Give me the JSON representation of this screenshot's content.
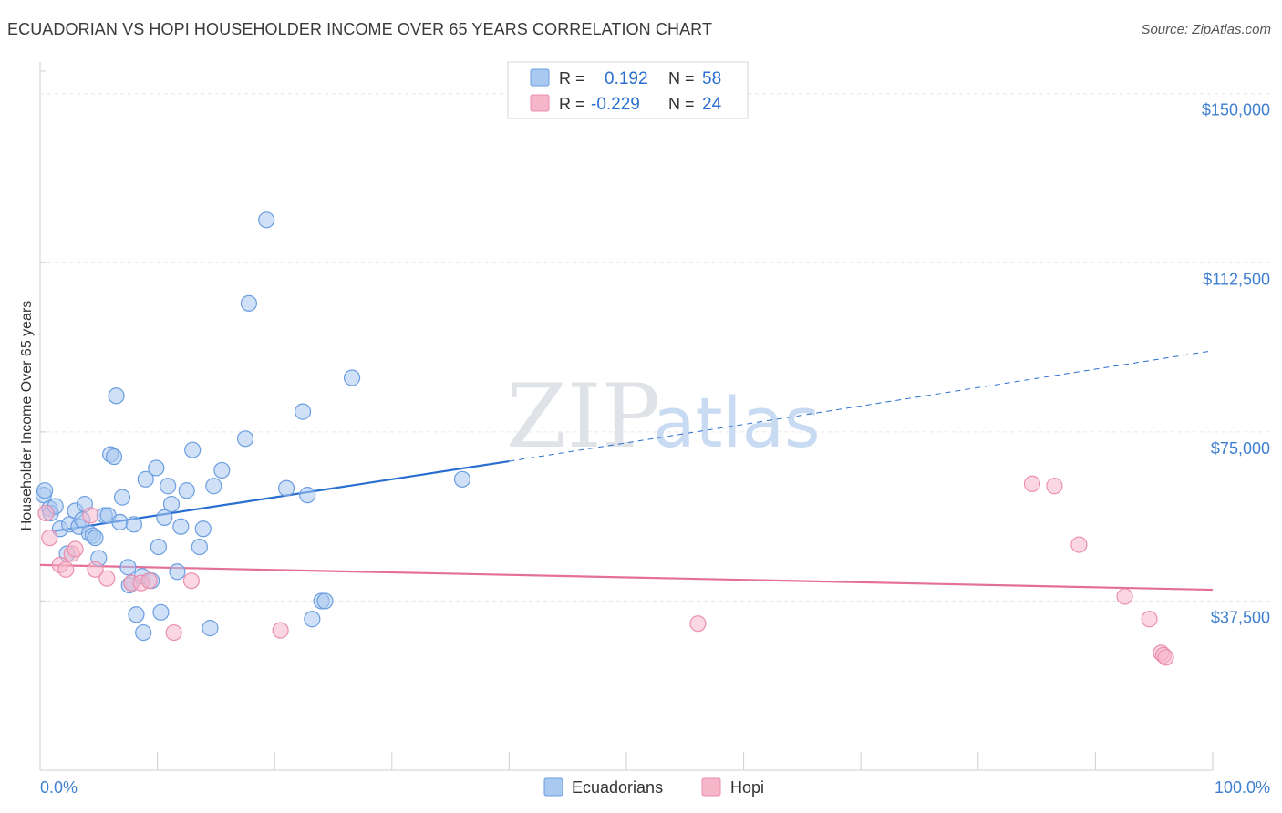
{
  "title": "ECUADORIAN VS HOPI HOUSEHOLDER INCOME OVER 65 YEARS CORRELATION CHART",
  "source": "Source: ZipAtlas.com",
  "watermark": {
    "zip": "ZIP",
    "atlas": "atlas"
  },
  "colors": {
    "ecuadorians_fill": "#a9c9f1",
    "ecuadorians_stroke": "#6a9ee0",
    "ecuadorians_line": "#2a6fcf",
    "hopi_fill": "#f6b6ca",
    "hopi_stroke": "#eb8fae",
    "hopi_line": "#e46f97",
    "axis_text": "#3f7fd0"
  },
  "legend_top": {
    "rows": [
      {
        "r_label": "R =",
        "r_value": "0.192",
        "n_label": "N =",
        "n_value": "58"
      },
      {
        "r_label": "R =",
        "r_value": "-0.229",
        "n_label": "N =",
        "n_value": "24"
      }
    ]
  },
  "legend_bottom": {
    "items": [
      {
        "label": "Ecuadorians"
      },
      {
        "label": "Hopi"
      }
    ]
  },
  "chart_data": {
    "type": "scatter",
    "title": "ECUADORIAN VS HOPI HOUSEHOLDER INCOME OVER 65 YEARS CORRELATION CHART",
    "xlabel": "",
    "ylabel": "Householder Income Over 65 years",
    "xlim": [
      0,
      100
    ],
    "ylim": [
      0,
      155000
    ],
    "x_tick_labels": [
      "0.0%",
      "100.0%"
    ],
    "y_ticks": [
      37500,
      75000,
      112500,
      150000
    ],
    "y_tick_labels": [
      "$37,500",
      "$75,000",
      "$112,500",
      "$150,000"
    ],
    "grid": true,
    "series": [
      {
        "name": "Ecuadorians",
        "r": 0.192,
        "n": 58,
        "trend": {
          "x0": 1.2,
          "y0": 53000,
          "x_solid_end": 40,
          "y_solid_end": 68500,
          "x1": 100,
          "y1": 93000
        },
        "points": [
          [
            0.3,
            61000
          ],
          [
            0.4,
            62000
          ],
          [
            0.8,
            58000
          ],
          [
            0.9,
            57000
          ],
          [
            1.3,
            58500
          ],
          [
            1.7,
            53500
          ],
          [
            2.3,
            48000
          ],
          [
            2.5,
            54500
          ],
          [
            3.0,
            57500
          ],
          [
            3.3,
            54000
          ],
          [
            3.6,
            55500
          ],
          [
            3.8,
            59000
          ],
          [
            4.2,
            52500
          ],
          [
            4.5,
            52000
          ],
          [
            4.7,
            51500
          ],
          [
            5.0,
            47000
          ],
          [
            5.5,
            56500
          ],
          [
            5.8,
            56500
          ],
          [
            6.0,
            70000
          ],
          [
            6.3,
            69500
          ],
          [
            6.5,
            83000
          ],
          [
            6.8,
            55000
          ],
          [
            7.0,
            60500
          ],
          [
            7.5,
            45000
          ],
          [
            7.6,
            41000
          ],
          [
            7.8,
            41500
          ],
          [
            8.0,
            54500
          ],
          [
            8.2,
            34500
          ],
          [
            8.7,
            43000
          ],
          [
            8.8,
            30500
          ],
          [
            9.0,
            64500
          ],
          [
            9.5,
            42000
          ],
          [
            9.9,
            67000
          ],
          [
            10.1,
            49500
          ],
          [
            10.3,
            35000
          ],
          [
            10.6,
            56000
          ],
          [
            10.9,
            63000
          ],
          [
            11.2,
            59000
          ],
          [
            11.7,
            44000
          ],
          [
            12.0,
            54000
          ],
          [
            12.5,
            62000
          ],
          [
            13.0,
            71000
          ],
          [
            13.6,
            49500
          ],
          [
            13.9,
            53500
          ],
          [
            14.5,
            31500
          ],
          [
            14.8,
            63000
          ],
          [
            15.5,
            66500
          ],
          [
            17.5,
            73500
          ],
          [
            17.8,
            103500
          ],
          [
            19.3,
            122000
          ],
          [
            21.0,
            62500
          ],
          [
            22.4,
            79500
          ],
          [
            22.8,
            61000
          ],
          [
            23.2,
            33500
          ],
          [
            24.0,
            37500
          ],
          [
            24.3,
            37500
          ],
          [
            26.6,
            87000
          ],
          [
            36.0,
            64500
          ]
        ]
      },
      {
        "name": "Hopi",
        "r": -0.229,
        "n": 24,
        "trend": {
          "x0": 0,
          "y0": 45500,
          "x1": 100,
          "y1": 40000
        },
        "points": [
          [
            0.5,
            57000
          ],
          [
            0.8,
            51500
          ],
          [
            1.7,
            45500
          ],
          [
            2.2,
            44500
          ],
          [
            2.7,
            48000
          ],
          [
            3.0,
            49000
          ],
          [
            4.3,
            56500
          ],
          [
            4.7,
            44500
          ],
          [
            5.7,
            42500
          ],
          [
            7.8,
            41500
          ],
          [
            8.6,
            41500
          ],
          [
            9.3,
            42000
          ],
          [
            11.4,
            30500
          ],
          [
            12.9,
            42000
          ],
          [
            20.5,
            31000
          ],
          [
            56.1,
            32500
          ],
          [
            84.6,
            63500
          ],
          [
            86.5,
            63000
          ],
          [
            88.6,
            50000
          ],
          [
            92.5,
            38500
          ],
          [
            94.6,
            33500
          ],
          [
            95.6,
            26000
          ],
          [
            95.8,
            25500
          ],
          [
            96.0,
            25000
          ]
        ]
      }
    ]
  }
}
